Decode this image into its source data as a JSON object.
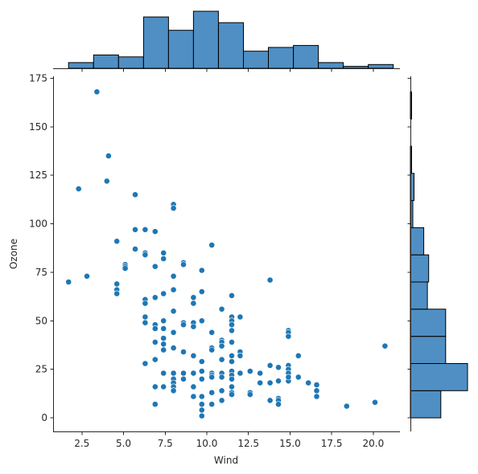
{
  "chart_data": {
    "type": "scatter",
    "title": "",
    "xlabel": "Wind",
    "ylabel": "Ozone",
    "xlim": [
      0.77,
      21.6
    ],
    "ylim": [
      -7,
      176
    ],
    "xticks": [
      "2.5",
      "5.0",
      "7.5",
      "10.0",
      "12.5",
      "15.0",
      "17.5",
      "20.0"
    ],
    "yticks": [
      "0",
      "25",
      "50",
      "75",
      "100",
      "125",
      "150",
      "175"
    ],
    "grid": false,
    "legend": "none",
    "colors": {
      "point": "#1f77b4",
      "bar": "#4f8fc4",
      "edge": "#000000",
      "axis": "#262626"
    },
    "points": [
      [
        3.4,
        168
      ],
      [
        4.1,
        135
      ],
      [
        4.0,
        122
      ],
      [
        2.3,
        118
      ],
      [
        5.7,
        115
      ],
      [
        8.0,
        110
      ],
      [
        8.0,
        108
      ],
      [
        5.7,
        97
      ],
      [
        6.3,
        97
      ],
      [
        6.9,
        96
      ],
      [
        4.6,
        91
      ],
      [
        10.3,
        89
      ],
      [
        5.7,
        87
      ],
      [
        6.3,
        85
      ],
      [
        6.3,
        84
      ],
      [
        7.4,
        85
      ],
      [
        7.4,
        82
      ],
      [
        8.6,
        80
      ],
      [
        8.6,
        79
      ],
      [
        5.1,
        79
      ],
      [
        5.1,
        78
      ],
      [
        5.1,
        77
      ],
      [
        6.9,
        78
      ],
      [
        9.7,
        76
      ],
      [
        2.8,
        73
      ],
      [
        8.0,
        73
      ],
      [
        1.7,
        70
      ],
      [
        13.8,
        71
      ],
      [
        4.6,
        69
      ],
      [
        4.6,
        66
      ],
      [
        4.6,
        64
      ],
      [
        8.0,
        66
      ],
      [
        9.7,
        65
      ],
      [
        7.4,
        64
      ],
      [
        9.2,
        62
      ],
      [
        11.5,
        63
      ],
      [
        6.3,
        61
      ],
      [
        6.9,
        62
      ],
      [
        6.3,
        59
      ],
      [
        9.2,
        59
      ],
      [
        8.0,
        55
      ],
      [
        10.9,
        56
      ],
      [
        11.5,
        52
      ],
      [
        12.0,
        52
      ],
      [
        6.3,
        52
      ],
      [
        6.3,
        49
      ],
      [
        7.4,
        50
      ],
      [
        6.9,
        48
      ],
      [
        6.9,
        46
      ],
      [
        7.4,
        46
      ],
      [
        8.0,
        44
      ],
      [
        8.6,
        49
      ],
      [
        8.6,
        48
      ],
      [
        9.2,
        49
      ],
      [
        9.7,
        50
      ],
      [
        9.2,
        47
      ],
      [
        10.3,
        44
      ],
      [
        11.5,
        50
      ],
      [
        11.5,
        48
      ],
      [
        11.5,
        45
      ],
      [
        14.9,
        45
      ],
      [
        14.9,
        44
      ],
      [
        14.9,
        42
      ],
      [
        7.4,
        41
      ],
      [
        6.9,
        39
      ],
      [
        7.4,
        38
      ],
      [
        7.4,
        35
      ],
      [
        8.0,
        36
      ],
      [
        8.6,
        34
      ],
      [
        9.2,
        32
      ],
      [
        9.7,
        29
      ],
      [
        10.3,
        36
      ],
      [
        10.3,
        35
      ],
      [
        10.9,
        40
      ],
      [
        10.9,
        39
      ],
      [
        10.9,
        37
      ],
      [
        11.5,
        39
      ],
      [
        11.5,
        32
      ],
      [
        12.0,
        34
      ],
      [
        12.0,
        32
      ],
      [
        11.5,
        29
      ],
      [
        10.9,
        30
      ],
      [
        15.5,
        32
      ],
      [
        20.7,
        37
      ],
      [
        6.3,
        28
      ],
      [
        6.9,
        30
      ],
      [
        7.4,
        23
      ],
      [
        8.0,
        23
      ],
      [
        8.6,
        23
      ],
      [
        9.2,
        23
      ],
      [
        9.7,
        24
      ],
      [
        10.3,
        23
      ],
      [
        10.3,
        22
      ],
      [
        10.9,
        23
      ],
      [
        11.5,
        24
      ],
      [
        11.5,
        22
      ],
      [
        12.0,
        23
      ],
      [
        12.6,
        24
      ],
      [
        13.2,
        23
      ],
      [
        13.8,
        27
      ],
      [
        14.3,
        26
      ],
      [
        14.9,
        27
      ],
      [
        14.9,
        25
      ],
      [
        14.9,
        23
      ],
      [
        15.5,
        21
      ],
      [
        16.1,
        18
      ],
      [
        16.6,
        17
      ],
      [
        16.6,
        14
      ],
      [
        16.6,
        11
      ],
      [
        8.0,
        20
      ],
      [
        8.6,
        20
      ],
      [
        9.7,
        20
      ],
      [
        10.3,
        21
      ],
      [
        10.9,
        21
      ],
      [
        11.5,
        20
      ],
      [
        13.2,
        18
      ],
      [
        13.8,
        18
      ],
      [
        14.3,
        19
      ],
      [
        14.9,
        19
      ],
      [
        14.9,
        21
      ],
      [
        7.4,
        16
      ],
      [
        6.9,
        16
      ],
      [
        8.0,
        18
      ],
      [
        8.0,
        16
      ],
      [
        8.0,
        14
      ],
      [
        9.2,
        16
      ],
      [
        9.2,
        11
      ],
      [
        9.7,
        11
      ],
      [
        9.7,
        7
      ],
      [
        9.7,
        4
      ],
      [
        9.7,
        1
      ],
      [
        10.3,
        13
      ],
      [
        10.9,
        14
      ],
      [
        10.9,
        9
      ],
      [
        11.5,
        13
      ],
      [
        11.5,
        12
      ],
      [
        11.5,
        16
      ],
      [
        12.6,
        13
      ],
      [
        12.6,
        12
      ],
      [
        13.8,
        9
      ],
      [
        14.3,
        10
      ],
      [
        14.3,
        9
      ],
      [
        14.3,
        7
      ],
      [
        10.3,
        7
      ],
      [
        6.9,
        7
      ],
      [
        18.4,
        6
      ],
      [
        20.1,
        8
      ]
    ],
    "marginal_x": {
      "bin_edges": [
        1.7,
        3.2,
        4.7,
        6.2,
        7.7,
        9.2,
        10.7,
        12.2,
        13.7,
        15.2,
        16.7,
        18.2,
        19.7,
        21.2
      ],
      "counts": [
        3,
        7,
        6,
        27,
        20,
        30,
        24,
        9,
        11,
        12,
        3,
        1,
        2
      ]
    },
    "marginal_y": {
      "bin_edges": [
        0,
        14,
        28,
        42,
        56,
        70,
        84,
        98,
        112,
        126,
        140,
        154,
        168
      ],
      "counts": [
        25,
        47,
        29,
        29,
        14,
        15,
        11,
        2,
        3,
        1,
        0,
        1
      ]
    }
  }
}
